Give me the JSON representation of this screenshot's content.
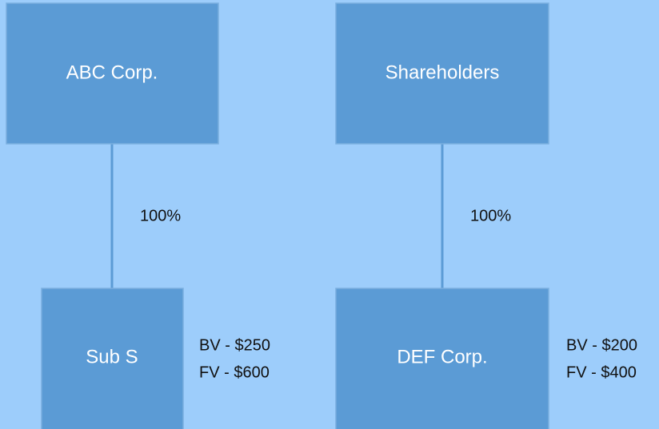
{
  "nodes": [
    {
      "label": "ABC Corp."
    },
    {
      "label": "Shareholders"
    },
    {
      "label": "Sub S",
      "notes": [
        "BV - $250",
        "FV - $600"
      ]
    },
    {
      "label": "DEF Corp.",
      "notes": [
        "BV - $200",
        "FV - $400"
      ]
    }
  ],
  "edges": [
    {
      "label": "100%"
    },
    {
      "label": "100%"
    }
  ]
}
